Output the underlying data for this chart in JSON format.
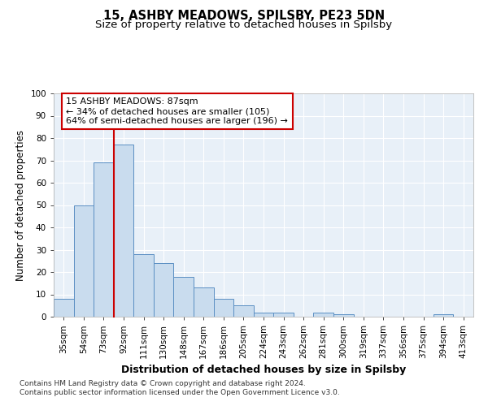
{
  "title_line1": "15, ASHBY MEADOWS, SPILSBY, PE23 5DN",
  "title_line2": "Size of property relative to detached houses in Spilsby",
  "xlabel": "Distribution of detached houses by size in Spilsby",
  "ylabel": "Number of detached properties",
  "footnote": "Contains HM Land Registry data © Crown copyright and database right 2024.\nContains public sector information licensed under the Open Government Licence v3.0.",
  "bar_labels": [
    "35sqm",
    "54sqm",
    "73sqm",
    "92sqm",
    "111sqm",
    "130sqm",
    "148sqm",
    "167sqm",
    "186sqm",
    "205sqm",
    "224sqm",
    "243sqm",
    "262sqm",
    "281sqm",
    "300sqm",
    "319sqm",
    "337sqm",
    "356sqm",
    "375sqm",
    "394sqm",
    "413sqm"
  ],
  "bar_values": [
    8,
    50,
    69,
    77,
    28,
    24,
    18,
    13,
    8,
    5,
    2,
    2,
    0,
    2,
    1,
    0,
    0,
    0,
    0,
    1,
    0
  ],
  "bar_color": "#c9dcee",
  "bar_edge_color": "#5b8fc3",
  "background_color": "#e8f0f8",
  "grid_color": "#ffffff",
  "annotation_text": "15 ASHBY MEADOWS: 87sqm\n← 34% of detached houses are smaller (105)\n64% of semi-detached houses are larger (196) →",
  "vline_color": "#cc0000",
  "annotation_box_edge_color": "#cc0000",
  "ylim": [
    0,
    100
  ],
  "yticks": [
    0,
    10,
    20,
    30,
    40,
    50,
    60,
    70,
    80,
    90,
    100
  ],
  "title_fontsize": 10.5,
  "subtitle_fontsize": 9.5,
  "ylabel_fontsize": 8.5,
  "xlabel_fontsize": 9,
  "tick_fontsize": 7.5,
  "annot_fontsize": 8,
  "footnote_fontsize": 6.5
}
